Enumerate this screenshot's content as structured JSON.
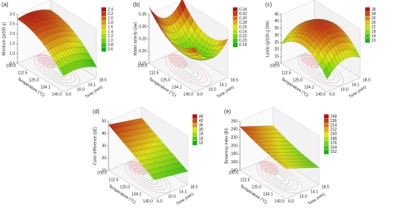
{
  "panels": [
    {
      "label": "(a)",
      "z_axis": {
        "title": "Moisture (g/100 g)",
        "ticks": [
          "3.0",
          "2.5",
          "2.0",
          "1.5",
          "1.0",
          "0.5"
        ]
      },
      "temperature_axis": {
        "title": "Temperature (°C)",
        "ticks": [
          "100.0",
          "112.5",
          "125.0",
          "134.1",
          "140.0"
        ]
      },
      "time_axis": {
        "title": "Time (min)",
        "ticks": [
          "6.0",
          "10.0",
          "14.1",
          "18.5"
        ]
      },
      "colorbar": [
        "2.4",
        "2.2",
        "2.0",
        "1.8",
        "1.6",
        "1.4",
        "1.2",
        "1.0",
        "0.8",
        "0.6"
      ]
    },
    {
      "label": "(b)",
      "z_axis": {
        "title": "Water activity (aw)",
        "ticks": [
          "0.35",
          "0.30",
          "0.25",
          "0.20",
          "0.15"
        ]
      },
      "temperature_axis": {
        "title": "Temperature (°C)",
        "ticks": [
          "100.0",
          "112.5",
          "125.0",
          "134.1",
          "140.0"
        ]
      },
      "time_axis": {
        "title": "Time (min)",
        "ticks": [
          "6.0",
          "10.0",
          "14.1",
          "18.5"
        ]
      },
      "colorbar": [
        "0.34",
        "0.32",
        "0.30",
        "0.28",
        "0.26",
        "0.24",
        "0.22",
        "0.20",
        "0.18"
      ]
    },
    {
      "label": "(c)",
      "z_axis": {
        "title": "Lipids (g/100 g DW)",
        "ticks": [
          "45",
          "40",
          "35",
          "30",
          "25",
          "20",
          "15",
          "10"
        ]
      },
      "temperature_axis": {
        "title": "Temperature (°C)",
        "ticks": [
          "100.0",
          "112.5",
          "125.0",
          "134.1",
          "140.0"
        ]
      },
      "time_axis": {
        "title": "Time (min)",
        "ticks": [
          "6.0",
          "10.0",
          "14.1",
          "18.5"
        ]
      },
      "colorbar": [
        "38",
        "34",
        "30",
        "26",
        "22",
        "18",
        "14",
        "10"
      ]
    },
    {
      "label": "(d)",
      "z_axis": {
        "title": "Color difference (ΔE)",
        "ticks": [
          "50",
          "40",
          "30",
          "20",
          "10"
        ]
      },
      "temperature_axis": {
        "title": "Temperature (°C)",
        "ticks": [
          "100.0",
          "112.5",
          "125.0",
          "134.1",
          "140.0"
        ]
      },
      "time_axis": {
        "title": "Time (min)",
        "ticks": [
          "6.0",
          "10.0",
          "14.1",
          "18.5"
        ]
      },
      "colorbar": [
        "48",
        "42",
        "36",
        "30",
        "24",
        "18",
        "12"
      ]
    },
    {
      "label": "(e)",
      "z_axis": {
        "title": "Browning index (BI)",
        "ticks": [
          "260",
          "240",
          "220",
          "200",
          "180",
          "160",
          "140"
        ]
      },
      "temperature_axis": {
        "title": "Temperature (°C)",
        "ticks": [
          "100.0",
          "112.5",
          "125.0",
          "134.1",
          "140.0"
        ]
      },
      "time_axis": {
        "title": "Time (min)",
        "ticks": [
          "6.0",
          "10.0",
          "14.1",
          "18.5"
        ]
      },
      "colorbar": [
        "248",
        "236",
        "224",
        "212",
        "200",
        "188",
        "176",
        "164",
        "152"
      ]
    }
  ]
}
